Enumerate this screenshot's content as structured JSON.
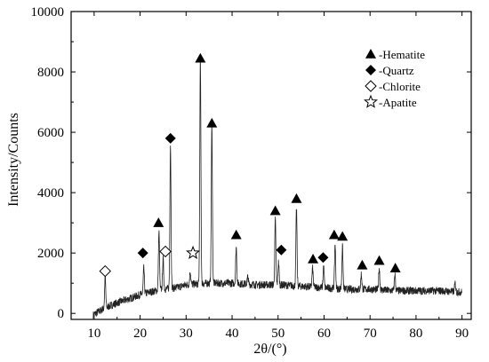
{
  "chart_data": {
    "type": "line",
    "xlabel": "2θ/(°)",
    "ylabel": "Intensity/Counts",
    "xlim": [
      5,
      92
    ],
    "ylim": [
      -200,
      10000
    ],
    "xticks": [
      10,
      20,
      30,
      40,
      50,
      60,
      70,
      80,
      90
    ],
    "yticks": [
      0,
      2000,
      4000,
      6000,
      8000,
      10000
    ],
    "grid": false,
    "legend_position": "top-right",
    "legend": [
      {
        "marker": "filled-triangle",
        "label": "-Hematite"
      },
      {
        "marker": "filled-diamond",
        "label": "-Quartz"
      },
      {
        "marker": "open-diamond",
        "label": "-Chlorite"
      },
      {
        "marker": "open-star",
        "label": "-Apatite"
      }
    ],
    "series": [
      {
        "kind": "baseline",
        "x": [
          9.8,
          12,
          15,
          18,
          20,
          22,
          25,
          28,
          30,
          35,
          40,
          45,
          50,
          55,
          60,
          65,
          70,
          75,
          80,
          85,
          90
        ],
        "y": [
          -50,
          150,
          350,
          500,
          620,
          700,
          800,
          850,
          950,
          1000,
          1000,
          950,
          950,
          900,
          850,
          800,
          800,
          750,
          750,
          750,
          700
        ]
      },
      {
        "kind": "peaks",
        "x": [
          12.4,
          20.8,
          24.1,
          25.0,
          26.6,
          30.9,
          33.1,
          35.6,
          40.9,
          43.4,
          49.4,
          50.1,
          54.0,
          57.5,
          59.9,
          62.4,
          64.0,
          68.1,
          72.0,
          75.4,
          88.5
        ],
        "y": [
          1200,
          1500,
          2700,
          1800,
          5600,
          1400,
          8400,
          6200,
          2200,
          1200,
          3100,
          1700,
          3500,
          1500,
          1550,
          2300,
          2200,
          1300,
          1500,
          1300,
          1000
        ]
      }
    ],
    "markers": [
      {
        "type": "open-diamond",
        "x": 12.4,
        "y": 1400
      },
      {
        "type": "filled-diamond",
        "x": 20.6,
        "y": 2000
      },
      {
        "type": "filled-triangle",
        "x": 24.0,
        "y": 3000
      },
      {
        "type": "open-diamond",
        "x": 25.5,
        "y": 2050
      },
      {
        "type": "filled-diamond",
        "x": 26.6,
        "y": 5800
      },
      {
        "type": "open-star",
        "x": 31.5,
        "y": 2000
      },
      {
        "type": "filled-triangle",
        "x": 33.1,
        "y": 8450
      },
      {
        "type": "filled-triangle",
        "x": 35.6,
        "y": 6300
      },
      {
        "type": "filled-triangle",
        "x": 40.9,
        "y": 2600
      },
      {
        "type": "filled-triangle",
        "x": 49.4,
        "y": 3400
      },
      {
        "type": "filled-diamond",
        "x": 50.7,
        "y": 2100
      },
      {
        "type": "filled-triangle",
        "x": 54.0,
        "y": 3800
      },
      {
        "type": "filled-triangle",
        "x": 57.6,
        "y": 1800
      },
      {
        "type": "filled-diamond",
        "x": 59.8,
        "y": 1850
      },
      {
        "type": "filled-triangle",
        "x": 62.2,
        "y": 2600
      },
      {
        "type": "filled-triangle",
        "x": 64.0,
        "y": 2550
      },
      {
        "type": "filled-triangle",
        "x": 68.3,
        "y": 1600
      },
      {
        "type": "filled-triangle",
        "x": 72.0,
        "y": 1750
      },
      {
        "type": "filled-triangle",
        "x": 75.5,
        "y": 1500
      }
    ]
  }
}
